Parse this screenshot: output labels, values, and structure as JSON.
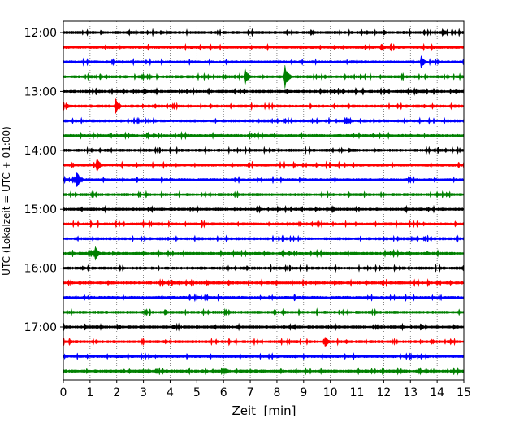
{
  "chart_data": {
    "type": "line",
    "title": "",
    "xlabel": "Zeit  [min]",
    "ylabel": "UTC (Lokalzeit = UTC + 01:00)",
    "xlim": [
      0,
      15
    ],
    "x_ticks": [
      "0",
      "1",
      "2",
      "3",
      "4",
      "5",
      "6",
      "7",
      "8",
      "9",
      "10",
      "11",
      "12",
      "13",
      "14",
      "15"
    ],
    "y_tick_labels": [
      "12:00",
      "13:00",
      "14:00",
      "15:00",
      "16:00",
      "17:00"
    ],
    "row_interval_min": 15,
    "grid": "vertical dotted at each minute",
    "trace_colors": [
      "#000000",
      "#ff0000",
      "#0000ff",
      "#008000"
    ],
    "rows": [
      {
        "start": "12:00",
        "color": "#000000",
        "events": [
          {
            "t": 1.4,
            "amp": 0.35
          },
          {
            "t": 12.0,
            "amp": 0.4
          },
          {
            "t": 13.5,
            "amp": 0.3
          },
          {
            "t": 14.2,
            "amp": 0.6
          }
        ]
      },
      {
        "start": "12:15",
        "color": "#ff0000",
        "events": [
          {
            "t": 11.3,
            "amp": 0.35
          },
          {
            "t": 11.9,
            "amp": 0.6
          }
        ]
      },
      {
        "start": "12:30",
        "color": "#0000ff",
        "events": [
          {
            "t": 2.2,
            "amp": 0.2
          },
          {
            "t": 13.4,
            "amp": 0.9
          }
        ]
      },
      {
        "start": "12:45",
        "color": "#008000",
        "events": [
          {
            "t": 6.8,
            "amp": 1.3
          },
          {
            "t": 8.3,
            "amp": 1.6
          }
        ]
      },
      {
        "start": "13:00",
        "color": "#000000",
        "events": [
          {
            "t": 5.4,
            "amp": 0.2
          },
          {
            "t": 14.7,
            "amp": 0.3
          }
        ]
      },
      {
        "start": "13:15",
        "color": "#ff0000",
        "events": [
          {
            "t": 0.1,
            "amp": 0.5
          },
          {
            "t": 1.95,
            "amp": 1.1
          }
        ]
      },
      {
        "start": "13:30",
        "color": "#0000ff",
        "events": [
          {
            "t": 9.0,
            "amp": 0.2
          }
        ]
      },
      {
        "start": "13:45",
        "color": "#008000",
        "events": [
          {
            "t": 11.6,
            "amp": 0.3
          }
        ]
      },
      {
        "start": "14:00",
        "color": "#000000",
        "events": [
          {
            "t": 10.7,
            "amp": 0.3
          }
        ]
      },
      {
        "start": "14:15",
        "color": "#ff0000",
        "events": [
          {
            "t": 1.25,
            "amp": 1.0
          }
        ]
      },
      {
        "start": "14:30",
        "color": "#0000ff",
        "events": [
          {
            "t": 0.5,
            "amp": 1.3
          },
          {
            "t": 9.0,
            "amp": 0.2
          }
        ]
      },
      {
        "start": "14:45",
        "color": "#008000",
        "events": [
          {
            "t": 2.6,
            "amp": 0.2
          }
        ]
      },
      {
        "start": "15:00",
        "color": "#000000",
        "events": [
          {
            "t": 3.0,
            "amp": 0.25
          },
          {
            "t": 6.4,
            "amp": 0.3
          }
        ]
      },
      {
        "start": "15:15",
        "color": "#ff0000",
        "events": [
          {
            "t": 7.2,
            "amp": 0.25
          }
        ]
      },
      {
        "start": "15:30",
        "color": "#0000ff",
        "events": [
          {
            "t": 12.0,
            "amp": 0.3
          }
        ]
      },
      {
        "start": "15:45",
        "color": "#008000",
        "events": [
          {
            "t": 1.2,
            "amp": 1.0
          },
          {
            "t": 6.5,
            "amp": 0.3
          },
          {
            "t": 13.6,
            "amp": 0.35
          }
        ]
      },
      {
        "start": "16:00",
        "color": "#000000",
        "events": [
          {
            "t": 6.9,
            "amp": 0.25
          }
        ]
      },
      {
        "start": "16:15",
        "color": "#ff0000",
        "events": [
          {
            "t": 10.2,
            "amp": 0.25
          },
          {
            "t": 14.8,
            "amp": 0.2
          }
        ]
      },
      {
        "start": "16:30",
        "color": "#0000ff",
        "events": [
          {
            "t": 7.7,
            "amp": 0.3
          }
        ]
      },
      {
        "start": "16:45",
        "color": "#008000",
        "events": [
          {
            "t": 3.8,
            "amp": 0.55
          }
        ]
      },
      {
        "start": "17:00",
        "color": "#000000",
        "events": [
          {
            "t": 4.1,
            "amp": 0.35
          },
          {
            "t": 13.4,
            "amp": 0.45
          }
        ]
      },
      {
        "start": "17:15",
        "color": "#ff0000",
        "events": [
          {
            "t": 9.8,
            "amp": 0.8
          },
          {
            "t": 10.6,
            "amp": 0.3
          }
        ]
      },
      {
        "start": "17:30",
        "color": "#0000ff",
        "events": [
          {
            "t": 6.0,
            "amp": 0.2
          }
        ]
      },
      {
        "start": "17:45",
        "color": "#008000",
        "events": [
          {
            "t": 11.3,
            "amp": 0.2
          }
        ]
      }
    ]
  }
}
